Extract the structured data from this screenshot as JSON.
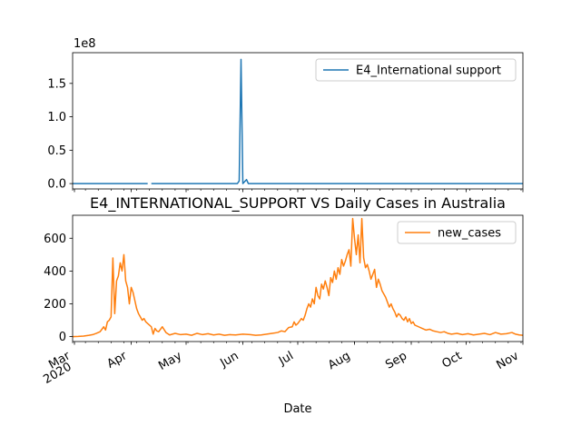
{
  "chart_data": [
    {
      "type": "line",
      "title": "",
      "xlabel": "",
      "ylabel": "",
      "y_offset_label": "1e8",
      "ylim": [
        -8000000,
        196000000
      ],
      "yticks": [
        0,
        50000000,
        100000000,
        150000000
      ],
      "ytick_labels": [
        "0.0",
        "0.5",
        "1.0",
        "1.5"
      ],
      "legend_position": "upper right",
      "grid": false,
      "series": [
        {
          "name": "E4_International support",
          "color": "#1f77b4",
          "points": [
            [
              "2020-02-29",
              0
            ],
            [
              "2020-04-10",
              0
            ],
            [
              "2020-04-11",
              null
            ],
            [
              "2020-04-12",
              0
            ],
            [
              "2020-05-29",
              0
            ],
            [
              "2020-05-30",
              4000000
            ],
            [
              "2020-05-31",
              186000000
            ],
            [
              "2020-06-01",
              0
            ],
            [
              "2020-06-02",
              3000000
            ],
            [
              "2020-06-03",
              6000000
            ],
            [
              "2020-06-04",
              0
            ],
            [
              "2020-11-01",
              0
            ]
          ]
        }
      ]
    },
    {
      "type": "line",
      "title": "E4_INTERNATIONAL_SUPPORT VS Daily Cases in Australia",
      "xlabel": "Date",
      "ylabel": "",
      "ylim": [
        -30,
        740
      ],
      "yticks": [
        0,
        200,
        400,
        600
      ],
      "ytick_labels": [
        "0",
        "200",
        "400",
        "600"
      ],
      "xlim": [
        "2020-02-29",
        "2020-11-01"
      ],
      "x_major_ticks": [
        "2020-03-01",
        "2020-04-01",
        "2020-05-01",
        "2020-06-01",
        "2020-07-01",
        "2020-08-01",
        "2020-09-01",
        "2020-10-01",
        "2020-11-01"
      ],
      "x_tick_labels": [
        "Mar\n2020",
        "Apr",
        "May",
        "Jun",
        "Jul",
        "Aug",
        "Sep",
        "Oct",
        "Nov"
      ],
      "legend_position": "upper right",
      "grid": false,
      "series": [
        {
          "name": "new_cases",
          "color": "#ff7f0e",
          "points": [
            [
              "2020-02-29",
              0
            ],
            [
              "2020-03-03",
              1
            ],
            [
              "2020-03-06",
              3
            ],
            [
              "2020-03-09",
              8
            ],
            [
              "2020-03-11",
              12
            ],
            [
              "2020-03-13",
              20
            ],
            [
              "2020-03-15",
              30
            ],
            [
              "2020-03-17",
              60
            ],
            [
              "2020-03-18",
              40
            ],
            [
              "2020-03-19",
              90
            ],
            [
              "2020-03-20",
              100
            ],
            [
              "2020-03-21",
              120
            ],
            [
              "2020-03-22",
              480
            ],
            [
              "2020-03-23",
              140
            ],
            [
              "2020-03-24",
              340
            ],
            [
              "2020-03-25",
              370
            ],
            [
              "2020-03-26",
              450
            ],
            [
              "2020-03-27",
              400
            ],
            [
              "2020-03-28",
              500
            ],
            [
              "2020-03-29",
              340
            ],
            [
              "2020-03-30",
              300
            ],
            [
              "2020-03-31",
              200
            ],
            [
              "2020-04-01",
              300
            ],
            [
              "2020-04-02",
              270
            ],
            [
              "2020-04-03",
              220
            ],
            [
              "2020-04-04",
              170
            ],
            [
              "2020-04-05",
              140
            ],
            [
              "2020-04-06",
              120
            ],
            [
              "2020-04-07",
              100
            ],
            [
              "2020-04-08",
              110
            ],
            [
              "2020-04-09",
              90
            ],
            [
              "2020-04-10",
              80
            ],
            [
              "2020-04-12",
              60
            ],
            [
              "2020-04-13",
              15
            ],
            [
              "2020-04-14",
              50
            ],
            [
              "2020-04-15",
              35
            ],
            [
              "2020-04-16",
              30
            ],
            [
              "2020-04-18",
              60
            ],
            [
              "2020-04-20",
              25
            ],
            [
              "2020-04-22",
              10
            ],
            [
              "2020-04-25",
              20
            ],
            [
              "2020-04-28",
              12
            ],
            [
              "2020-05-01",
              15
            ],
            [
              "2020-05-04",
              8
            ],
            [
              "2020-05-07",
              20
            ],
            [
              "2020-05-10",
              12
            ],
            [
              "2020-05-13",
              18
            ],
            [
              "2020-05-16",
              10
            ],
            [
              "2020-05-19",
              15
            ],
            [
              "2020-05-22",
              8
            ],
            [
              "2020-05-25",
              12
            ],
            [
              "2020-05-28",
              10
            ],
            [
              "2020-06-01",
              15
            ],
            [
              "2020-06-05",
              12
            ],
            [
              "2020-06-08",
              8
            ],
            [
              "2020-06-11",
              10
            ],
            [
              "2020-06-14",
              15
            ],
            [
              "2020-06-17",
              20
            ],
            [
              "2020-06-20",
              25
            ],
            [
              "2020-06-22",
              35
            ],
            [
              "2020-06-24",
              30
            ],
            [
              "2020-06-26",
              55
            ],
            [
              "2020-06-28",
              60
            ],
            [
              "2020-06-29",
              90
            ],
            [
              "2020-06-30",
              70
            ],
            [
              "2020-07-01",
              80
            ],
            [
              "2020-07-02",
              95
            ],
            [
              "2020-07-03",
              110
            ],
            [
              "2020-07-04",
              100
            ],
            [
              "2020-07-05",
              130
            ],
            [
              "2020-07-06",
              170
            ],
            [
              "2020-07-07",
              200
            ],
            [
              "2020-07-08",
              180
            ],
            [
              "2020-07-09",
              230
            ],
            [
              "2020-07-10",
              200
            ],
            [
              "2020-07-11",
              300
            ],
            [
              "2020-07-12",
              250
            ],
            [
              "2020-07-13",
              230
            ],
            [
              "2020-07-14",
              320
            ],
            [
              "2020-07-15",
              290
            ],
            [
              "2020-07-16",
              340
            ],
            [
              "2020-07-17",
              300
            ],
            [
              "2020-07-18",
              250
            ],
            [
              "2020-07-19",
              360
            ],
            [
              "2020-07-20",
              330
            ],
            [
              "2020-07-21",
              400
            ],
            [
              "2020-07-22",
              350
            ],
            [
              "2020-07-23",
              420
            ],
            [
              "2020-07-24",
              380
            ],
            [
              "2020-07-25",
              470
            ],
            [
              "2020-07-26",
              430
            ],
            [
              "2020-07-27",
              460
            ],
            [
              "2020-07-28",
              500
            ],
            [
              "2020-07-29",
              530
            ],
            [
              "2020-07-30",
              430
            ],
            [
              "2020-07-31",
              720
            ],
            [
              "2020-08-01",
              600
            ],
            [
              "2020-08-02",
              500
            ],
            [
              "2020-08-03",
              620
            ],
            [
              "2020-08-04",
              450
            ],
            [
              "2020-08-05",
              720
            ],
            [
              "2020-08-06",
              480
            ],
            [
              "2020-08-07",
              420
            ],
            [
              "2020-08-08",
              440
            ],
            [
              "2020-08-09",
              400
            ],
            [
              "2020-08-10",
              350
            ],
            [
              "2020-08-11",
              380
            ],
            [
              "2020-08-12",
              410
            ],
            [
              "2020-08-13",
              300
            ],
            [
              "2020-08-14",
              350
            ],
            [
              "2020-08-15",
              320
            ],
            [
              "2020-08-16",
              280
            ],
            [
              "2020-08-17",
              260
            ],
            [
              "2020-08-18",
              240
            ],
            [
              "2020-08-19",
              210
            ],
            [
              "2020-08-20",
              180
            ],
            [
              "2020-08-21",
              200
            ],
            [
              "2020-08-22",
              170
            ],
            [
              "2020-08-23",
              150
            ],
            [
              "2020-08-24",
              120
            ],
            [
              "2020-08-25",
              140
            ],
            [
              "2020-08-26",
              130
            ],
            [
              "2020-08-27",
              110
            ],
            [
              "2020-08-28",
              100
            ],
            [
              "2020-08-29",
              120
            ],
            [
              "2020-08-30",
              90
            ],
            [
              "2020-08-31",
              110
            ],
            [
              "2020-09-01",
              80
            ],
            [
              "2020-09-02",
              90
            ],
            [
              "2020-09-03",
              70
            ],
            [
              "2020-09-05",
              60
            ],
            [
              "2020-09-07",
              50
            ],
            [
              "2020-09-09",
              40
            ],
            [
              "2020-09-11",
              45
            ],
            [
              "2020-09-13",
              35
            ],
            [
              "2020-09-15",
              30
            ],
            [
              "2020-09-17",
              25
            ],
            [
              "2020-09-19",
              30
            ],
            [
              "2020-09-21",
              20
            ],
            [
              "2020-09-23",
              15
            ],
            [
              "2020-09-26",
              20
            ],
            [
              "2020-09-29",
              12
            ],
            [
              "2020-10-02",
              18
            ],
            [
              "2020-10-05",
              10
            ],
            [
              "2020-10-08",
              15
            ],
            [
              "2020-10-11",
              20
            ],
            [
              "2020-10-14",
              12
            ],
            [
              "2020-10-17",
              25
            ],
            [
              "2020-10-20",
              15
            ],
            [
              "2020-10-23",
              18
            ],
            [
              "2020-10-26",
              25
            ],
            [
              "2020-10-28",
              15
            ],
            [
              "2020-10-30",
              10
            ],
            [
              "2020-11-01",
              8
            ]
          ]
        }
      ]
    }
  ]
}
